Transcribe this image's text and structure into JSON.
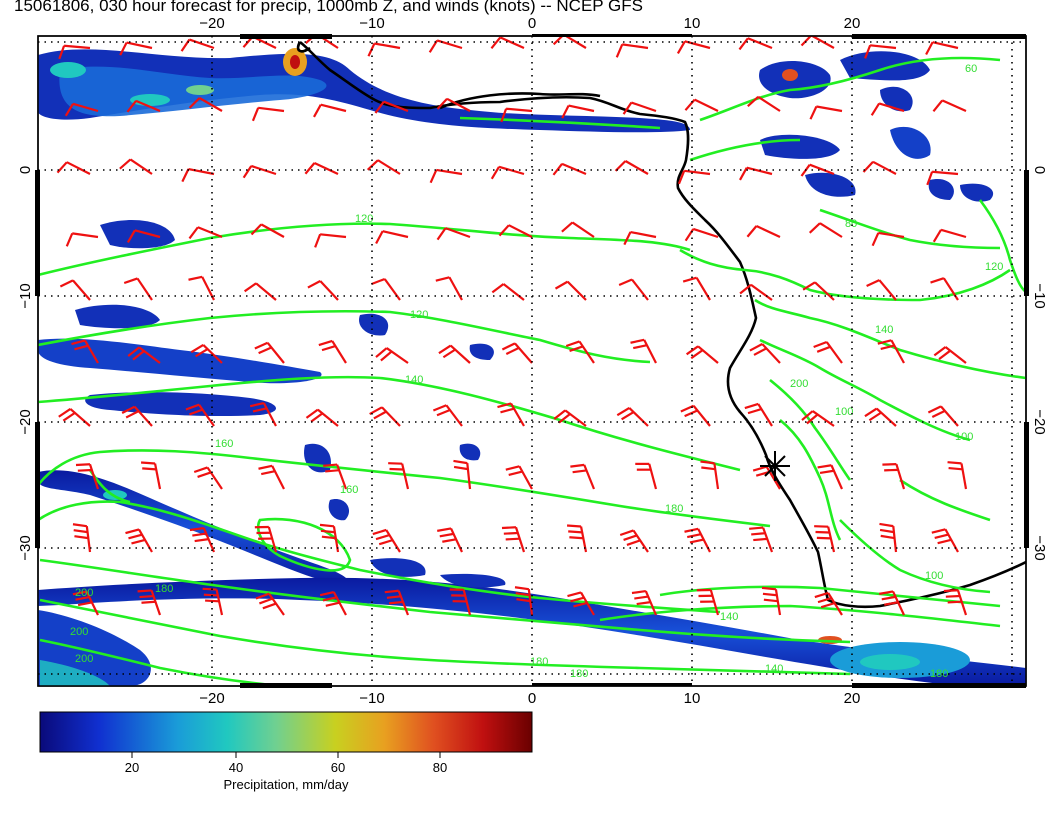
{
  "title": "15061806, 030 hour forecast for precip, 1000mb Z, and winds (knots) -- NCEP GFS",
  "map": {
    "lon_ticks_top": [
      "−20",
      "−10",
      "0",
      "10",
      "20"
    ],
    "lon_ticks_bottom": [
      "−20",
      "−10",
      "0",
      "10",
      "20"
    ],
    "lat_ticks_left": [
      "0",
      "−10",
      "−20",
      "−30"
    ],
    "lat_ticks_right": [
      "0",
      "−10",
      "−20",
      "−30"
    ],
    "contour_labels": [
      "120",
      "120",
      "140",
      "140",
      "160",
      "160",
      "180",
      "180",
      "200",
      "200",
      "200",
      "200",
      "100",
      "100",
      "100",
      "80",
      "60",
      "120",
      "140",
      "180",
      "180",
      "140",
      "180"
    ],
    "contour_color": "#22ee22",
    "wind_barb_color": "#ee1111",
    "coastline_color": "#000000"
  },
  "colorbar": {
    "label": "Precipitation, mm/day",
    "ticks": [
      "20",
      "40",
      "60",
      "80"
    ],
    "stops": [
      "#0a0a7a",
      "#1030d0",
      "#1a9cd8",
      "#20c8c0",
      "#70d090",
      "#c8d020",
      "#e8a020",
      "#e05020",
      "#c01010",
      "#6a0000"
    ]
  }
}
